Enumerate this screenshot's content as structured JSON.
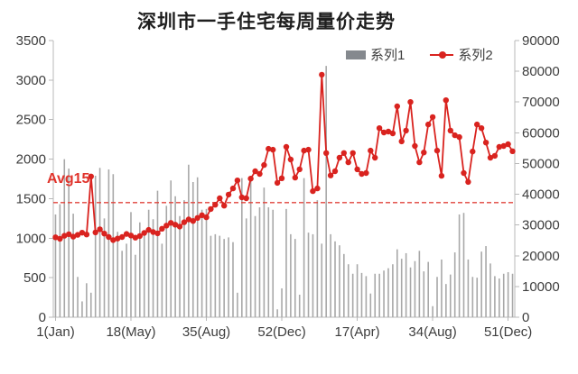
{
  "title": "深圳市一手住宅每周量价走势",
  "legend": [
    {
      "name": "系列1",
      "type": "bar",
      "color": "#85898e"
    },
    {
      "name": "系列2",
      "type": "line",
      "color": "#d9231f"
    }
  ],
  "annotation": {
    "label": "Avg15",
    "value": 1450,
    "axis": "left",
    "color": "#e0433b"
  },
  "colors": {
    "bar": "#a8a8a8",
    "line": "#d9231f",
    "avg_dash": "#e0433b",
    "axis": "#b8b8b8",
    "tick_text": "#3d3d3d",
    "title_text": "#1f1f1f",
    "background": "#ffffff"
  },
  "chart_data": {
    "type": "bar+line",
    "title": "深圳市一手住宅每周量价走势",
    "x_axis": {
      "total_points": 104,
      "tick_labels": [
        "1(Jan)",
        "18(May)",
        "35(Aug)",
        "52(Dec)",
        "17(Apr)",
        "34(Aug)",
        "51(Dec)"
      ],
      "tick_point_index": [
        0,
        17,
        34,
        51,
        68,
        85,
        102
      ]
    },
    "y_left": {
      "min": 0,
      "max": 3500,
      "step": 500,
      "grid": false
    },
    "y_right": {
      "min": 0,
      "max": 90000,
      "step": 10000,
      "grid": false
    },
    "avg_line": {
      "label": "Avg15",
      "value": 1450,
      "axis": "left"
    },
    "legend_position": "top-right-inside",
    "series": [
      {
        "name": "系列1",
        "type": "bar",
        "axis": "left",
        "color": "#a8a8a8",
        "values": [
          1300,
          1430,
          2000,
          1880,
          1310,
          510,
          200,
          430,
          310,
          1790,
          1890,
          1250,
          1870,
          1810,
          1080,
          840,
          930,
          1330,
          790,
          1200,
          1070,
          1360,
          1240,
          1600,
          930,
          1410,
          1730,
          1530,
          1280,
          1480,
          1930,
          1710,
          1770,
          1360,
          1370,
          1030,
          1050,
          1030,
          990,
          1010,
          950,
          310,
          1760,
          1250,
          1790,
          1280,
          1390,
          1640,
          1390,
          1360,
          100,
          365,
          1370,
          1050,
          990,
          285,
          1760,
          1070,
          1050,
          1480,
          930,
          3180,
          1050,
          960,
          910,
          800,
          670,
          550,
          670,
          560,
          520,
          300,
          550,
          550,
          590,
          620,
          670,
          860,
          740,
          810,
          630,
          710,
          840,
          580,
          700,
          140,
          510,
          730,
          420,
          540,
          820,
          1300,
          1320,
          730,
          510,
          500,
          830,
          900,
          680,
          520,
          490,
          550,
          570,
          550
        ]
      },
      {
        "name": "系列2",
        "type": "line",
        "axis": "right",
        "color": "#d9231f",
        "values": [
          26000,
          25500,
          26500,
          27000,
          26200,
          26800,
          27500,
          26900,
          45800,
          27600,
          28600,
          27200,
          26100,
          25100,
          25600,
          26100,
          27100,
          26600,
          25900,
          26400,
          27400,
          28400,
          27700,
          27300,
          28800,
          29800,
          30700,
          30100,
          29500,
          30900,
          31800,
          31300,
          32300,
          33200,
          32500,
          35200,
          36600,
          38700,
          36300,
          39900,
          41900,
          44500,
          39000,
          38700,
          45100,
          47500,
          46600,
          49500,
          54800,
          54500,
          43700,
          45200,
          55400,
          51300,
          45400,
          48100,
          54200,
          54500,
          41000,
          41900,
          78900,
          53400,
          46100,
          47500,
          51900,
          53400,
          50400,
          53400,
          48100,
          46600,
          46900,
          54200,
          51900,
          61500,
          60100,
          60400,
          59800,
          68600,
          57200,
          60700,
          70000,
          55700,
          50400,
          53600,
          62700,
          65100,
          54200,
          46000,
          70600,
          60700,
          59200,
          58600,
          46900,
          44000,
          53900,
          62700,
          61500,
          56800,
          51900,
          52500,
          55400,
          55700,
          56300,
          54000
        ]
      }
    ]
  }
}
